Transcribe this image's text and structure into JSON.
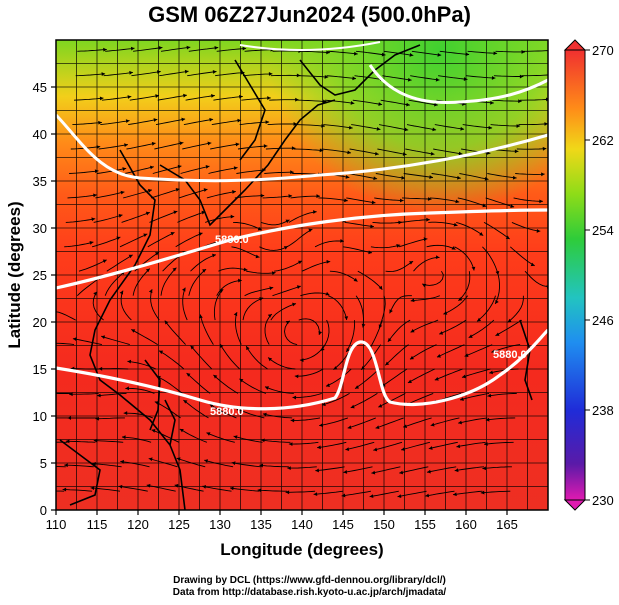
{
  "title": "GSM 06Z27Jun2024 (500.0hPa)",
  "axes": {
    "xlabel": "Longitude (degrees)",
    "ylabel": "Latitude  (degrees)",
    "xticks": [
      "110",
      "115",
      "120",
      "125",
      "130",
      "135",
      "140",
      "145",
      "150",
      "155",
      "160",
      "165"
    ],
    "yticks": [
      "0",
      "5",
      "10",
      "15",
      "20",
      "25",
      "30",
      "35",
      "40",
      "45"
    ],
    "xlim": [
      110,
      170
    ],
    "ylim": [
      0,
      50
    ]
  },
  "colorbar": {
    "labels": [
      "270",
      "262",
      "254",
      "246",
      "238",
      "230"
    ],
    "range": [
      230,
      270
    ],
    "colors": [
      "#ff1493",
      "#3b0ea8",
      "#1a2bd6",
      "#1ea0ff",
      "#22c8b0",
      "#2ecc3a",
      "#8ee010",
      "#f0e010",
      "#ff8c10",
      "#ff3a10",
      "#f03030"
    ]
  },
  "contour_labels": [
    "5880.0",
    "5880.0",
    "5880.0"
  ],
  "credits": {
    "line1": "Drawing by DCL (https://www.gfd-dennou.org/library/dcl/)",
    "line2": "Data from http://database.rish.kyoto-u.ac.jp/arch/jmadata/"
  }
}
